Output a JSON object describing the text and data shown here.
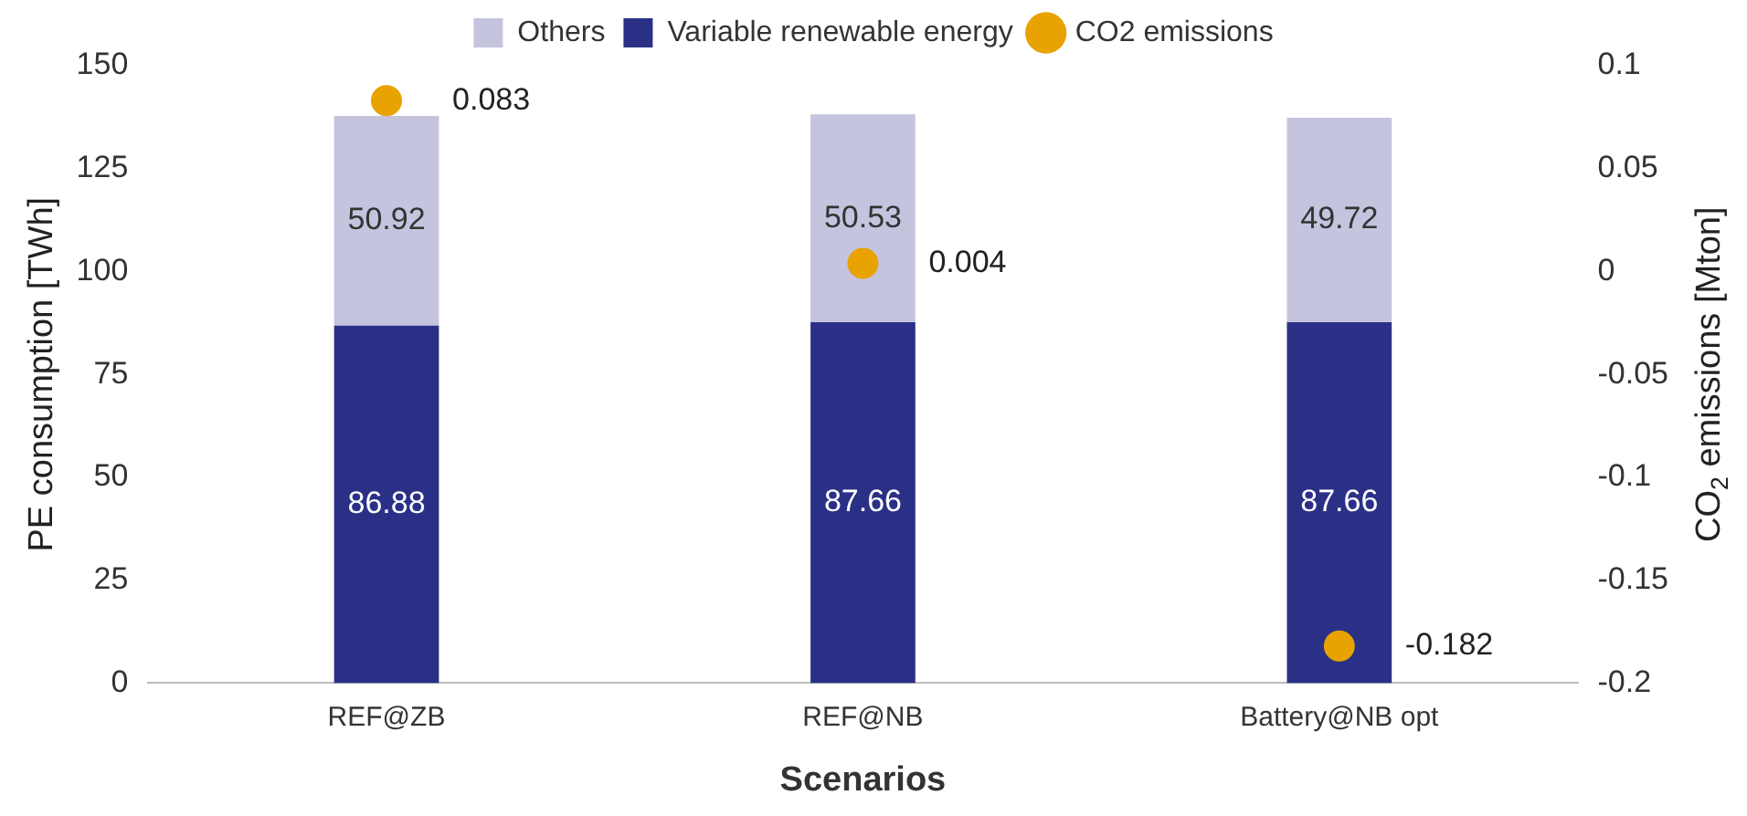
{
  "chart_data": {
    "type": "bar",
    "stacked": true,
    "xlabel": "Scenarios",
    "ylabel": "PE consumption [TWh]",
    "y2label": "CO$_{2}$ emissions [Mton]",
    "categories": [
      "REF@ZB",
      "REF@NB",
      "Battery@NB opt"
    ],
    "series": [
      {
        "name": "Variable renewable energy",
        "color": "#2b3087",
        "values": [
          86.88,
          87.66,
          87.66
        ]
      },
      {
        "name": "Others",
        "color": "#c4c4df",
        "values": [
          50.92,
          50.53,
          49.72
        ]
      },
      {
        "name": "CO2 emissions",
        "type": "scatter",
        "axis": "y2",
        "color": "#e8a202",
        "x": [
          "REF@ZB",
          "REF@NB",
          "Battery@NB opt"
        ],
        "values": [
          0.083,
          0.004,
          -0.182
        ]
      }
    ],
    "ylim": [
      0,
      150
    ],
    "yticks": [
      0,
      25,
      50,
      75,
      100,
      125,
      150
    ],
    "y2lim": [
      -0.2,
      0.1
    ],
    "y2ticks": [
      -0.2,
      -0.15,
      -0.1,
      -0.05,
      0,
      0.05,
      0.1
    ],
    "data_labels": true,
    "legend": "top",
    "marker": "circle",
    "grid": false
  }
}
